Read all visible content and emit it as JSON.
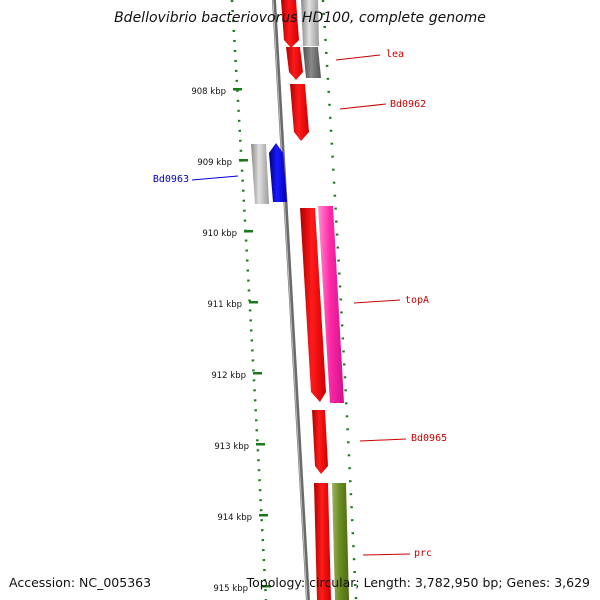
{
  "title": "Bdellovibrio bacteriovorus HD100, complete genome",
  "footer": {
    "accession": "Accession: NC_005363",
    "summary": "Topology: circular; Length: 3,782,950 bp; Genes: 3,629"
  },
  "colors": {
    "tick": "#1a7a1a",
    "backbone": "#808080",
    "forward_gene": "#ff0000",
    "pink_gene": "#ff2aa8",
    "blue_gene": "#0000ff",
    "olive_gene": "#6b8e23",
    "grey_gene": "#a8a8a8",
    "dark_grey_gene": "#6e6e6e",
    "label_red": "#cc0000",
    "label_blue": "#0000cc"
  },
  "scale": {
    "unit": "kbp",
    "ticks": [
      {
        "label": "908 kbp",
        "kbp": 908
      },
      {
        "label": "909 kbp",
        "kbp": 909
      },
      {
        "label": "910 kbp",
        "kbp": 910
      },
      {
        "label": "911 kbp",
        "kbp": 911
      },
      {
        "label": "912 kbp",
        "kbp": 912
      },
      {
        "label": "913 kbp",
        "kbp": 913
      },
      {
        "label": "914 kbp",
        "kbp": 914
      },
      {
        "label": "915 kbp",
        "kbp": 915
      }
    ]
  },
  "gene_labels": [
    {
      "text": "lea",
      "color": "red"
    },
    {
      "text": "Bd0962",
      "color": "red"
    },
    {
      "text": "Bd0963",
      "color": "blue"
    },
    {
      "text": "topA",
      "color": "red"
    },
    {
      "text": "Bd0965",
      "color": "red"
    },
    {
      "text": "prc",
      "color": "red"
    }
  ]
}
